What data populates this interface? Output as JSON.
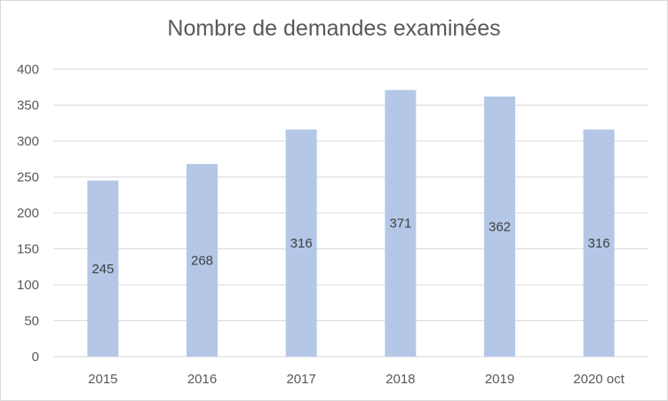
{
  "chart_data": {
    "type": "bar",
    "title": "Nombre de demandes examinées",
    "categories": [
      "2015",
      "2016",
      "2017",
      "2018",
      "2019",
      "2020 oct"
    ],
    "values": [
      245,
      268,
      316,
      371,
      362,
      316
    ],
    "data_labels": [
      "245",
      "268",
      "316",
      "371",
      "362",
      "316"
    ],
    "ylim": [
      0,
      400
    ],
    "yticks": [
      0,
      50,
      100,
      150,
      200,
      250,
      300,
      350,
      400
    ],
    "xlabel": "",
    "ylabel": "",
    "grid": true,
    "legend": "none",
    "colors": {
      "bar": "#b4c7e7",
      "grid": "#d9d9d9",
      "axis": "#d9d9d9",
      "text": "#595959",
      "label": "#404040"
    }
  }
}
